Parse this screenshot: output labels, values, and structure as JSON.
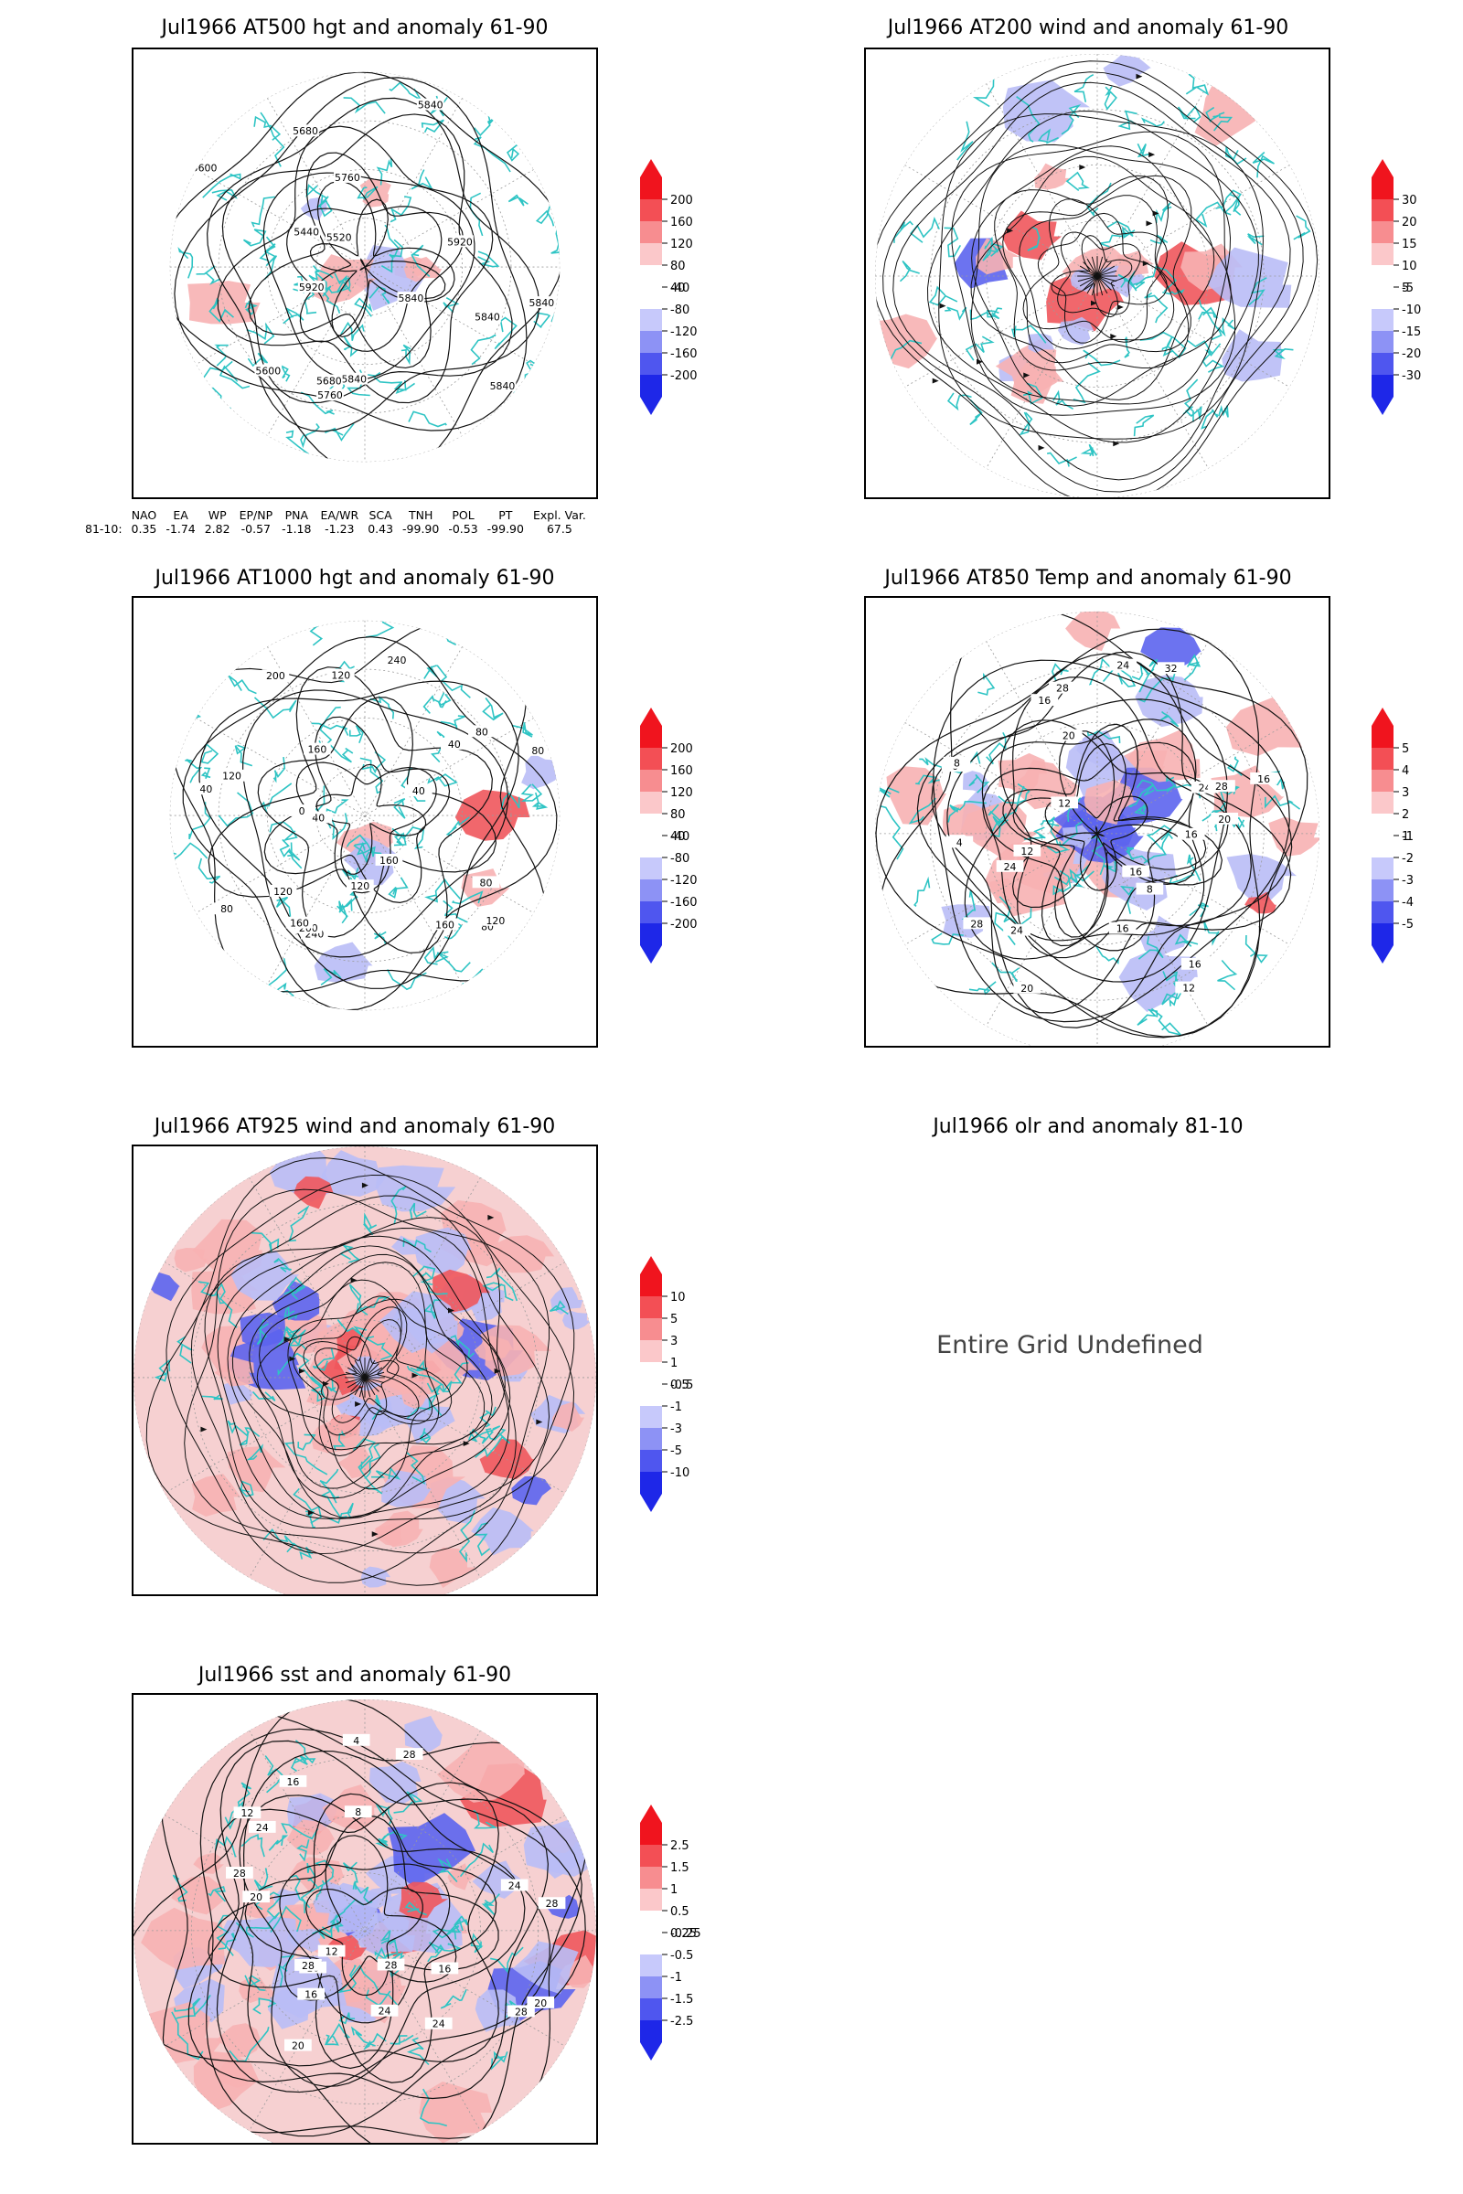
{
  "panels": [
    {
      "id": "p1",
      "title": "Jul1966 AT500 hgt and anomaly 61-90",
      "contour_labels": [
        "5840",
        "5840",
        "5840",
        "5760",
        "5680",
        "5600",
        "5920",
        "5440",
        "5520",
        "5600",
        "5680",
        "5760",
        "5840",
        "5920",
        "5840",
        "5840"
      ],
      "colorbar": [
        "200",
        "160",
        "120",
        "80",
        "40",
        "-40",
        "-80",
        "-120",
        "-160",
        "-200"
      ]
    },
    {
      "id": "p2",
      "title": "Jul1966 AT200 wind and anomaly 61-90",
      "colorbar": [
        "30",
        "20",
        "15",
        "10",
        "5",
        "-5",
        "-10",
        "-15",
        "-20",
        "-30"
      ]
    },
    {
      "id": "p3",
      "title": "Jul1966 AT1000 hgt and anomaly 61-90",
      "contour_labels": [
        "80",
        "120",
        "160",
        "160",
        "240",
        "200",
        "120",
        "160",
        "120",
        "80",
        "40",
        "40",
        "0",
        "120",
        "160",
        "200",
        "240",
        "120",
        "80",
        "40",
        "80",
        "80",
        "40",
        "80"
      ],
      "colorbar": [
        "200",
        "160",
        "120",
        "80",
        "40",
        "-40",
        "-80",
        "-120",
        "-160",
        "-200"
      ]
    },
    {
      "id": "p4",
      "title": "Jul1966 AT850 Temp and anomaly 61-90",
      "contour_labels": [
        "16",
        "12",
        "16",
        "8",
        "16",
        "24",
        "28",
        "20",
        "24",
        "12",
        "4",
        "0",
        "8",
        "12",
        "16",
        "20",
        "28",
        "32",
        "24",
        "16",
        "20",
        "24",
        "28",
        "16"
      ],
      "colorbar": [
        "5",
        "4",
        "3",
        "2",
        "1",
        "-1",
        "-2",
        "-3",
        "-4",
        "-5"
      ]
    },
    {
      "id": "p5",
      "title": "Jul1966 AT925 wind and anomaly 61-90",
      "colorbar": [
        "10",
        "5",
        "3",
        "1",
        "0.5",
        "-0.5",
        "-1",
        "-3",
        "-5",
        "-10"
      ]
    },
    {
      "id": "p6",
      "title": "Jul1966 olr and anomaly 81-10",
      "message": "Entire Grid Undefined"
    },
    {
      "id": "p7",
      "title": "Jul1966 sst and anomaly 61-90",
      "contour_labels": [
        "28",
        "24",
        "28",
        "24",
        "20",
        "16",
        "12",
        "16",
        "28",
        "28",
        "24",
        "20",
        "16",
        "12",
        "8",
        "4",
        "28",
        "24",
        "28",
        "20",
        "16"
      ],
      "colorbar": [
        "2.5",
        "1.5",
        "1",
        "0.5",
        "0.25",
        "-0.25",
        "-0.5",
        "-1",
        "-1.5",
        "-2.5"
      ]
    }
  ],
  "teleconnections": {
    "headers": [
      "NAO",
      "EA",
      "WP",
      "EP/NP",
      "PNA",
      "EA/WR",
      "SCA",
      "TNH",
      "POL",
      "PT",
      "Expl. Var."
    ],
    "row_label": "81-10:",
    "values": [
      "0.35",
      "-1.74",
      "2.82",
      "-0.57",
      "-1.18",
      "-1.23",
      "0.43",
      "-99.90",
      "-0.53",
      "-99.90",
      "67.5"
    ]
  },
  "colors": {
    "coast": "#2ec4c4",
    "contour": "#111111",
    "pos_strong": "#e8141e",
    "neg_strong": "#1f2be0",
    "grid": "#9a9a9a"
  }
}
